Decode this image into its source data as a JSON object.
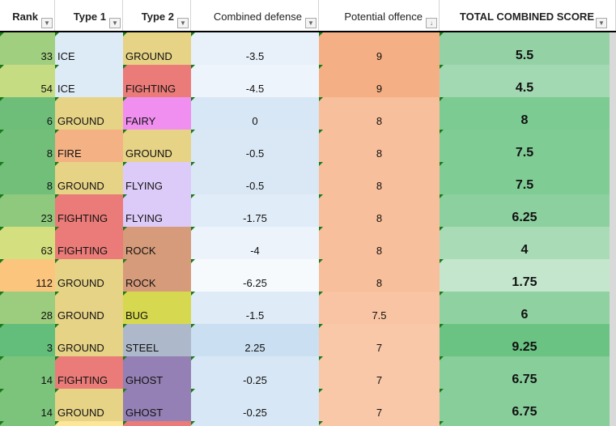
{
  "headers": [
    {
      "label": "Rank",
      "bold": true,
      "filter": "dropdown"
    },
    {
      "label": "Type 1",
      "bold": true,
      "filter": "dropdown"
    },
    {
      "label": "Type 2",
      "bold": true,
      "filter": "dropdown"
    },
    {
      "label": "Combined defense",
      "bold": false,
      "filter": "dropdown"
    },
    {
      "label": "Potential offence",
      "bold": false,
      "filter": "sorted-descending"
    },
    {
      "label": "TOTAL COMBINED SCORE",
      "bold": true,
      "filter": "dropdown"
    }
  ],
  "rows": [
    {
      "rank": "33",
      "type1": "ICE",
      "type2": "GROUND",
      "defense": "-3.5",
      "offence": "9",
      "total": "5.5",
      "colors": [
        "#a0d07f",
        "#ddebf7",
        "#e6d386",
        "#e8f0f9",
        "#f4b084",
        "#94d2a6"
      ]
    },
    {
      "rank": "54",
      "type1": "ICE",
      "type2": "FIGHTING",
      "defense": "-4.5",
      "offence": "9",
      "total": "4.5",
      "colors": [
        "#c5dc82",
        "#ddebf7",
        "#ea7b78",
        "#eef4fb",
        "#f4b084",
        "#a3d9b2"
      ]
    },
    {
      "rank": "6",
      "type1": "GROUND",
      "type2": "FAIRY",
      "defense": "0",
      "offence": "8",
      "total": "8",
      "colors": [
        "#6ebe7a",
        "#e6d386",
        "#f08ff0",
        "#d8e7f5",
        "#f7bf9b",
        "#7ccb92"
      ]
    },
    {
      "rank": "8",
      "type1": "FIRE",
      "type2": "GROUND",
      "defense": "-0.5",
      "offence": "8",
      "total": "7.5",
      "colors": [
        "#72bf7a",
        "#f4b183",
        "#e6d386",
        "#dae8f5",
        "#f7bf9b",
        "#80cc95"
      ]
    },
    {
      "rank": "8",
      "type1": "GROUND",
      "type2": "FLYING",
      "defense": "-0.5",
      "offence": "8",
      "total": "7.5",
      "colors": [
        "#72bf7a",
        "#e6d386",
        "#dccbf8",
        "#dae8f5",
        "#f7bf9b",
        "#80cc95"
      ]
    },
    {
      "rank": "23",
      "type1": "FIGHTING",
      "type2": "FLYING",
      "defense": "-1.75",
      "offence": "8",
      "total": "6.25",
      "colors": [
        "#8ec97d",
        "#ea7b78",
        "#dccbf8",
        "#e0ecf7",
        "#f7bf9b",
        "#8dd09f"
      ]
    },
    {
      "rank": "63",
      "type1": "FIGHTING",
      "type2": "ROCK",
      "defense": "-4",
      "offence": "8",
      "total": "4",
      "colors": [
        "#d4e07f",
        "#ea7b78",
        "#d59b7a",
        "#ecf3fa",
        "#f7bf9b",
        "#a8dbb6"
      ]
    },
    {
      "rank": "112",
      "type1": "GROUND",
      "type2": "ROCK",
      "defense": "-6.25",
      "offence": "8",
      "total": "1.75",
      "colors": [
        "#fcc57d",
        "#e6d386",
        "#d59b7a",
        "#f7fafd",
        "#f7bf9b",
        "#c3e6cc"
      ]
    },
    {
      "rank": "28",
      "type1": "GROUND",
      "type2": "BUG",
      "defense": "-1.5",
      "offence": "7.5",
      "total": "6",
      "colors": [
        "#9ccd7e",
        "#e6d386",
        "#d6d94f",
        "#dfebf7",
        "#f8c4a3",
        "#90d1a1"
      ]
    },
    {
      "rank": "3",
      "type1": "GROUND",
      "type2": "STEEL",
      "defense": "2.25",
      "offence": "7",
      "total": "9.25",
      "colors": [
        "#63be7b",
        "#e6d386",
        "#adb9ca",
        "#cadff1",
        "#f8c8a8",
        "#6ac382"
      ]
    },
    {
      "rank": "14",
      "type1": "FIGHTING",
      "type2": "GHOST",
      "defense": "-0.25",
      "offence": "7",
      "total": "6.75",
      "colors": [
        "#7cc47c",
        "#ea7b78",
        "#9480b4",
        "#d8e7f5",
        "#f8c8a8",
        "#88ce9a"
      ]
    },
    {
      "rank": "14",
      "type1": "GROUND",
      "type2": "GHOST",
      "defense": "-0.25",
      "offence": "7",
      "total": "6.75",
      "colors": [
        "#7cc47c",
        "#e6d386",
        "#9480b4",
        "#d8e7f5",
        "#f8c8a8",
        "#88ce9a"
      ]
    }
  ],
  "partial_row_colors": [
    "#7cc47c",
    "#fde59a",
    "#ea7b78",
    "#d8e7f5",
    "#f8c8a8",
    "#88ce9a"
  ]
}
